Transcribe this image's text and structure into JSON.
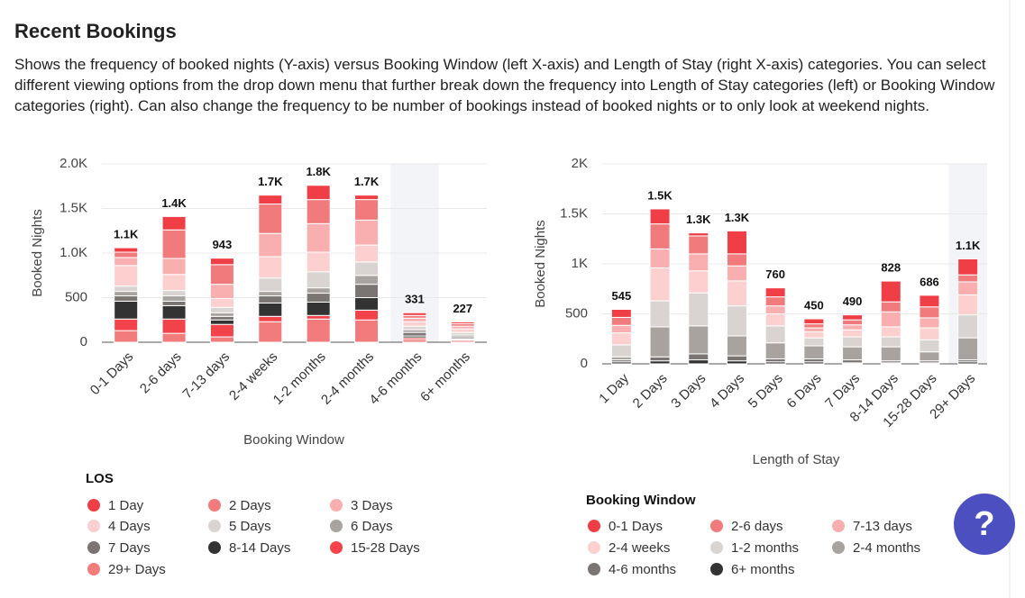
{
  "header": {
    "title": "Recent Bookings",
    "description": "Shows the frequency of booked nights (Y-axis) versus Booking Window (left X-axis) and Length of Stay (right X-axis) categories. You can select different viewing options from the drop down menu that further break down the frequency into Length of Stay categories (left) or Booking Window categories (right). Can also change the frequency to be number of bookings instead of booked nights or to only look at weekend nights."
  },
  "help_button": {
    "label": "?"
  },
  "chart_data": [
    {
      "type": "stacked_bar",
      "y_label": "Booked Nights",
      "x_label": "Booking Window",
      "legend_title": "LOS",
      "categories": [
        "0-1 Days",
        "2-6 days",
        "7-13 days",
        "2-4 weeks",
        "1-2 months",
        "2-4 months",
        "4-6 months",
        "6+ months"
      ],
      "ylim": [
        0,
        2000
      ],
      "yticks": [
        0,
        500,
        {
          "value": 1000,
          "label": "1.0K"
        },
        {
          "value": 1500,
          "label": "1.5K"
        },
        {
          "value": 2000,
          "label": "2.0K"
        }
      ],
      "grid": true,
      "totals": [
        1060,
        1410,
        943,
        1650,
        1760,
        1650,
        331,
        227
      ],
      "total_labels": [
        "1.1K",
        "1.4K",
        "943",
        "1.7K",
        "1.8K",
        "1.7K",
        "331",
        "227"
      ],
      "series": [
        {
          "name": "1 Day",
          "color": "#ef3e46",
          "values": [
            50,
            150,
            73,
            100,
            160,
            50,
            31,
            20
          ]
        },
        {
          "name": "2 Days",
          "color": "#f07a7c",
          "values": [
            60,
            320,
            220,
            330,
            270,
            230,
            30,
            27
          ]
        },
        {
          "name": "3 Days",
          "color": "#f9aeb0",
          "values": [
            90,
            180,
            160,
            260,
            320,
            280,
            40,
            30
          ]
        },
        {
          "name": "4 Days",
          "color": "#fbd0cf",
          "values": [
            230,
            180,
            100,
            240,
            220,
            190,
            50,
            40
          ]
        },
        {
          "name": "5 Days",
          "color": "#d9d4d2",
          "values": [
            60,
            60,
            60,
            150,
            180,
            150,
            40,
            30
          ]
        },
        {
          "name": "6 Days",
          "color": "#a9a3a0",
          "values": [
            50,
            60,
            40,
            50,
            60,
            100,
            30,
            20
          ]
        },
        {
          "name": "7 Days",
          "color": "#7a7472",
          "values": [
            60,
            50,
            40,
            80,
            100,
            150,
            40,
            20
          ]
        },
        {
          "name": "8-14 Days",
          "color": "#333333",
          "values": [
            200,
            150,
            50,
            150,
            150,
            140,
            20,
            10
          ]
        },
        {
          "name": "15-28 Days",
          "color": "#f2424a",
          "values": [
            130,
            160,
            140,
            60,
            40,
            110,
            20,
            10
          ]
        },
        {
          "name": "29+ Days",
          "color": "#f27b7c",
          "values": [
            130,
            100,
            60,
            230,
            260,
            250,
            30,
            20
          ]
        }
      ]
    },
    {
      "type": "stacked_bar",
      "y_label": "Booked Nights",
      "x_label": "Length of Stay",
      "legend_title": "Booking Window",
      "categories": [
        "1 Day",
        "2 Days",
        "3 Days",
        "4 Days",
        "5 Days",
        "6 Days",
        "7 Days",
        "8-14 Days",
        "15-28 Days",
        "29+ Days"
      ],
      "ylim": [
        0,
        2000
      ],
      "yticks": [
        0,
        500,
        {
          "value": 1000,
          "label": "1K"
        },
        {
          "value": 1500,
          "label": "1.5K"
        },
        {
          "value": 2000,
          "label": "2K"
        }
      ],
      "grid": true,
      "totals": [
        545,
        1550,
        1310,
        1330,
        760,
        450,
        490,
        828,
        686,
        1050
      ],
      "total_labels": [
        "545",
        "1.5K",
        "1.3K",
        "1.3K",
        "760",
        "450",
        "490",
        "828",
        "686",
        "1.1K"
      ],
      "series": [
        {
          "name": "0-1 Days",
          "color": "#ef3e46",
          "values": [
            80,
            150,
            30,
            230,
            90,
            50,
            50,
            208,
            116,
            160
          ]
        },
        {
          "name": "2-6 days",
          "color": "#f07a7c",
          "values": [
            80,
            250,
            180,
            120,
            90,
            40,
            50,
            100,
            110,
            70
          ]
        },
        {
          "name": "7-13 days",
          "color": "#f9aeb0",
          "values": [
            75,
            190,
            170,
            150,
            80,
            40,
            50,
            150,
            100,
            130
          ]
        },
        {
          "name": "2-4 weeks",
          "color": "#fbd0cf",
          "values": [
            120,
            330,
            220,
            250,
            120,
            60,
            70,
            100,
            120,
            200
          ]
        },
        {
          "name": "1-2 months",
          "color": "#d9d4d2",
          "values": [
            120,
            260,
            330,
            300,
            170,
            80,
            100,
            100,
            120,
            230
          ]
        },
        {
          "name": "2-4 months",
          "color": "#a9a3a0",
          "values": [
            30,
            300,
            280,
            200,
            160,
            130,
            130,
            140,
            90,
            220
          ]
        },
        {
          "name": "4-6 months",
          "color": "#7a7472",
          "values": [
            20,
            40,
            60,
            50,
            30,
            30,
            30,
            20,
            20,
            20
          ]
        },
        {
          "name": "6+ months",
          "color": "#333333",
          "values": [
            20,
            30,
            40,
            30,
            20,
            20,
            10,
            10,
            10,
            20
          ]
        }
      ]
    }
  ]
}
